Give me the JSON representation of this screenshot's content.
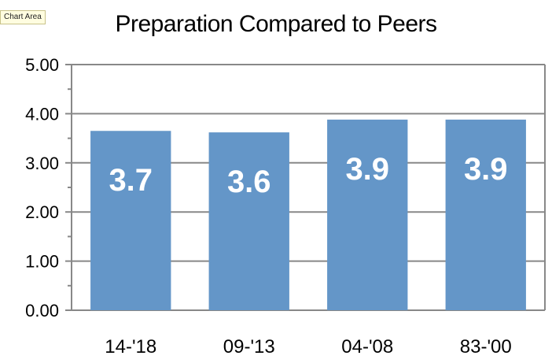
{
  "tooltip": {
    "text": "Chart Area"
  },
  "chart_data": {
    "type": "bar",
    "title": "Preparation Compared to Peers",
    "categories": [
      "14-'18",
      "09-'13",
      "04-'08",
      "83-'00"
    ],
    "values": [
      3.65,
      3.62,
      3.88,
      3.88
    ],
    "data_labels": [
      "3.7",
      "3.6",
      "3.9",
      "3.9"
    ],
    "ylim": [
      0,
      5
    ],
    "y_ticks": [
      "0.00",
      "1.00",
      "2.00",
      "3.00",
      "4.00",
      "5.00"
    ],
    "grid": true,
    "bar_color": "#6496c8",
    "grid_color": "#888888"
  }
}
